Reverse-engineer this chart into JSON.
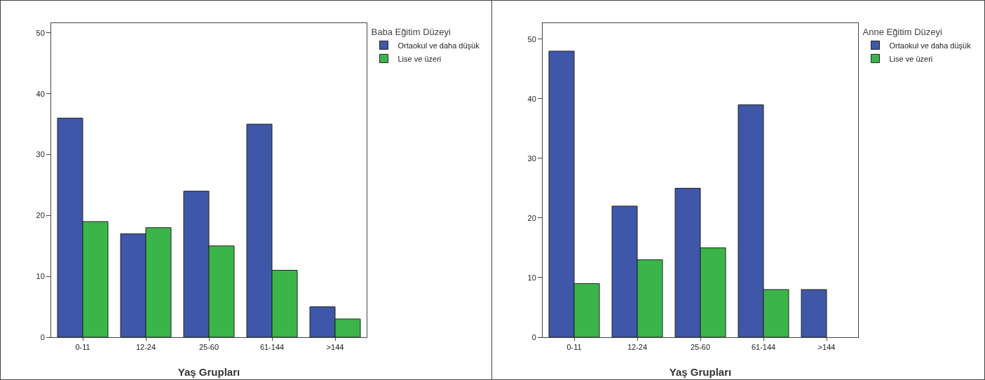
{
  "chart_data": [
    {
      "type": "bar",
      "xlabel": "Yaş Grupları",
      "legend_title": "Baba Eğitim Düzeyi",
      "categories": [
        "0-11",
        "12-24",
        "25-60",
        "61-144",
        ">144"
      ],
      "series": [
        {
          "name": "Ortaokul ve daha düşük",
          "color": "#3f57a8",
          "values": [
            36,
            17,
            24,
            35,
            5
          ]
        },
        {
          "name": "Lise ve üzeri",
          "color": "#3bb54a",
          "values": [
            19,
            18,
            15,
            11,
            3
          ]
        }
      ],
      "ylim": [
        0,
        51.6
      ],
      "yticks": [
        0,
        10,
        20,
        30,
        40,
        50
      ],
      "grid": false,
      "legend": "top right"
    },
    {
      "type": "bar",
      "xlabel": "Yaş Grupları",
      "legend_title": "Anne Eğitim Düzeyi",
      "categories": [
        "0-11",
        "12-24",
        "25-60",
        "61-144",
        ">144"
      ],
      "series": [
        {
          "name": "Ortaokul ve daha düşük",
          "color": "#3f57a8",
          "values": [
            48,
            22,
            25,
            39,
            8
          ]
        },
        {
          "name": "Lise ve üzeri",
          "color": "#3bb54a",
          "values": [
            9,
            13,
            15,
            8,
            null
          ]
        }
      ],
      "ylim": [
        0,
        52.7
      ],
      "yticks": [
        0,
        10,
        20,
        30,
        40,
        50
      ],
      "grid": false,
      "legend": "top right"
    }
  ]
}
